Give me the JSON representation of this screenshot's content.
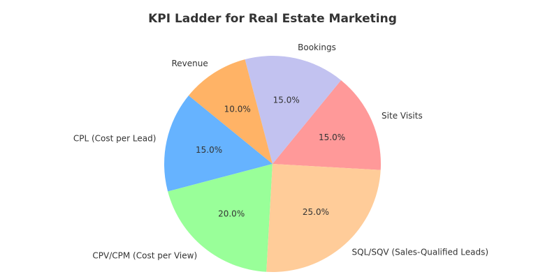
{
  "chart_data": {
    "type": "pie",
    "title": "KPI Ladder for Real Estate Marketing",
    "categories": [
      "Site Visits",
      "Bookings",
      "Revenue",
      "CPL (Cost per Lead)",
      "CPV/CPM (Cost per View)",
      "SQL/SQV (Sales-Qualified Leads)"
    ],
    "values": [
      15,
      15,
      10,
      15,
      20,
      25
    ],
    "value_labels": [
      "15.0%",
      "15.0%",
      "10.0%",
      "15.0%",
      "20.0%",
      "25.0%"
    ],
    "colors": [
      "#ff9999",
      "#c2c2f0",
      "#ffb366",
      "#66b3ff",
      "#99ff99",
      "#ffcc99"
    ]
  }
}
